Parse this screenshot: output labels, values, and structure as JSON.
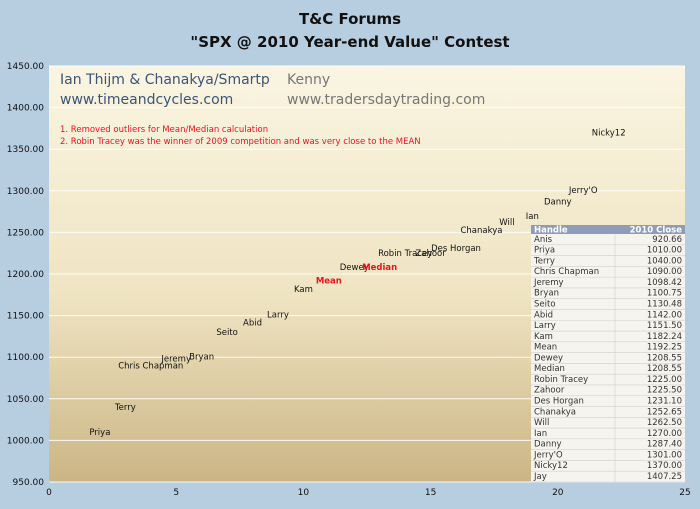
{
  "chart_data": {
    "type": "scatter",
    "title": "T&C Forums",
    "subtitle": "\"SPX @ 2010 Year-end Value\" Contest",
    "xlim": [
      0,
      25
    ],
    "ylim": [
      950,
      1450
    ],
    "x_ticks": [
      "0",
      "5",
      "10",
      "15",
      "20",
      "25"
    ],
    "y_ticks": [
      "950.00",
      "1000.00",
      "1050.00",
      "1100.00",
      "1150.00",
      "1200.00",
      "1250.00",
      "1300.00",
      "1350.00",
      "1400.00",
      "1450.00"
    ],
    "grid": "horizontal",
    "points": [
      {
        "label": "Priya",
        "x": 2,
        "y": 1010.0
      },
      {
        "label": "Terry",
        "x": 3,
        "y": 1040.0
      },
      {
        "label": "Chris Chapman",
        "x": 4,
        "y": 1090.0
      },
      {
        "label": "Jeremy",
        "x": 5,
        "y": 1098.42
      },
      {
        "label": "Bryan",
        "x": 6,
        "y": 1100.75
      },
      {
        "label": "Seito",
        "x": 7,
        "y": 1130.48
      },
      {
        "label": "Abid",
        "x": 8,
        "y": 1142.0
      },
      {
        "label": "Larry",
        "x": 9,
        "y": 1151.5
      },
      {
        "label": "Kam",
        "x": 10,
        "y": 1182.24
      },
      {
        "label": "Mean",
        "x": 11,
        "y": 1192.25,
        "highlight": true
      },
      {
        "label": "Dewey",
        "x": 12,
        "y": 1208.55
      },
      {
        "label": "Median",
        "x": 13,
        "y": 1208.55,
        "highlight": true
      },
      {
        "label": "Robin Tracey",
        "x": 14,
        "y": 1225.0
      },
      {
        "label": "Zahoor",
        "x": 15,
        "y": 1225.5
      },
      {
        "label": "Des Horgan",
        "x": 16,
        "y": 1231.1
      },
      {
        "label": "Chanakya",
        "x": 17,
        "y": 1252.65
      },
      {
        "label": "Will",
        "x": 18,
        "y": 1262.5
      },
      {
        "label": "Ian",
        "x": 19,
        "y": 1270.0
      },
      {
        "label": "Danny",
        "x": 20,
        "y": 1287.4
      },
      {
        "label": "Jerry'O",
        "x": 21,
        "y": 1301.0
      },
      {
        "label": "Nicky12",
        "x": 22,
        "y": 1370.0
      }
    ]
  },
  "header": {
    "authors_left": "Ian Thijm & Chanakya/Smartp",
    "site_left": "www.timeandcycles.com",
    "authors_right": "Kenny",
    "site_right": "www.tradersdaytrading.com"
  },
  "notes": [
    "1. Removed outliers for Mean/Median  calculation",
    "2. Robin  Tracey was the winner of 2009 competition and was  very close to the MEAN"
  ],
  "table": {
    "columns": [
      "Handle",
      "2010 Close"
    ],
    "rows": [
      [
        "Anis",
        "920.66"
      ],
      [
        "Priya",
        "1010.00"
      ],
      [
        "Terry",
        "1040.00"
      ],
      [
        "Chris Chapman",
        "1090.00"
      ],
      [
        "Jeremy",
        "1098.42"
      ],
      [
        "Bryan",
        "1100.75"
      ],
      [
        "Seito",
        "1130.48"
      ],
      [
        "Abid",
        "1142.00"
      ],
      [
        "Larry",
        "1151.50"
      ],
      [
        "Kam",
        "1182.24"
      ],
      [
        "Mean",
        "1192.25"
      ],
      [
        "Dewey",
        "1208.55"
      ],
      [
        "Median",
        "1208.55"
      ],
      [
        "Robin Tracey",
        "1225.00"
      ],
      [
        "Zahoor",
        "1225.50"
      ],
      [
        "Des Horgan",
        "1231.10"
      ],
      [
        "Chanakya",
        "1252.65"
      ],
      [
        "Will",
        "1262.50"
      ],
      [
        "Ian",
        "1270.00"
      ],
      [
        "Danny",
        "1287.40"
      ],
      [
        "Jerry'O",
        "1301.00"
      ],
      [
        "Nicky12",
        "1370.00"
      ],
      [
        "Jay",
        "1407.25"
      ]
    ]
  },
  "colors": {
    "background": "#b7cde0",
    "plot_top": "#f8f2dd",
    "plot_bottom": "#cdb98a",
    "highlight": "#e8141c",
    "table_header": "#8e9cb8"
  }
}
